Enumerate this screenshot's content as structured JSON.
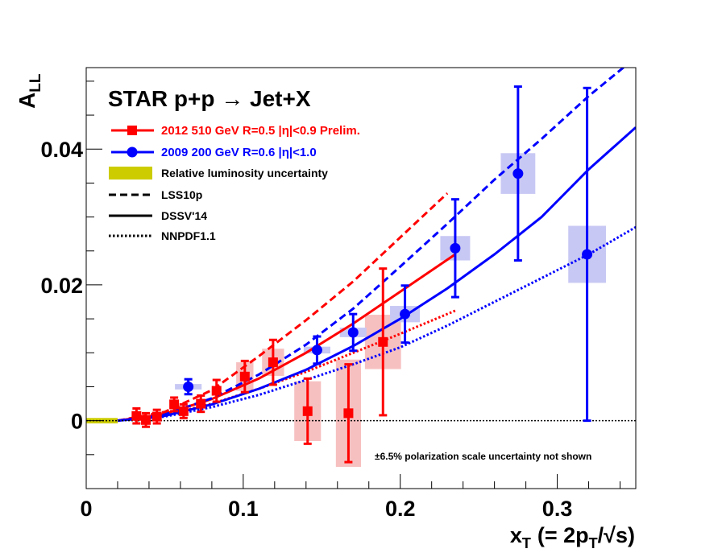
{
  "chart_data": {
    "type": "scatter",
    "title": "STAR p+p → Jet+X",
    "xlabel_main": "x",
    "xlabel_sub": "T",
    "xlabel_rest": "(= 2p",
    "xlabel_rest_sub": "T",
    "xlabel_tail": "/√s)",
    "ylabel_main": "A",
    "ylabel_sub": "LL",
    "xlim": [
      0,
      0.35
    ],
    "ylim": [
      -0.01,
      0.052
    ],
    "x_ticks": [
      0,
      0.1,
      0.2,
      0.3
    ],
    "x_tick_labels": [
      "0",
      "0.1",
      "0.2",
      "0.3"
    ],
    "y_ticks": [
      0,
      0.02,
      0.04
    ],
    "y_tick_labels": [
      "0",
      "0.02",
      "0.04"
    ],
    "grid": false,
    "legend_position": "top-left",
    "annotation": "±6.5% polarization scale uncertainty not shown",
    "colors": {
      "red": "#ff0000",
      "blue": "#0000ff",
      "red_box": "#f7c0c0",
      "blue_box": "#c8c8f4",
      "lumi": "#cccc00"
    },
    "legend": [
      {
        "kind": "red-marker",
        "label": "2012 510 GeV R=0.5  |η|<0.9 Prelim."
      },
      {
        "kind": "blue-marker",
        "label": "2009 200 GeV R=0.6  |η|<1.0"
      },
      {
        "kind": "lumi-band",
        "label": "Relative luminosity uncertainty"
      },
      {
        "kind": "dashed",
        "label": "LSS10p"
      },
      {
        "kind": "solid",
        "label": "DSSV'14"
      },
      {
        "kind": "dotted",
        "label": "NNPDF1.1"
      }
    ],
    "lumi_band": {
      "x": [
        0,
        0.02
      ],
      "y": [
        -0.0004,
        0.0004
      ]
    },
    "series": [
      {
        "name": "2012 510 GeV R=0.5  |η|<0.9 Prelim.",
        "color": "red",
        "points": [
          {
            "x": 0.032,
            "y": 0.0007,
            "err": 0.0011,
            "sys_w": 0.002,
            "sys_h": 0.0004
          },
          {
            "x": 0.038,
            "y": 0.0001,
            "err": 0.001,
            "sys_w": 0.002,
            "sys_h": 0.0004
          },
          {
            "x": 0.045,
            "y": 0.0006,
            "err": 0.001,
            "sys_w": 0.002,
            "sys_h": 0.0004
          },
          {
            "x": 0.056,
            "y": 0.0024,
            "err": 0.001,
            "sys_w": 0.002,
            "sys_h": 0.0006
          },
          {
            "x": 0.062,
            "y": 0.0014,
            "err": 0.001,
            "sys_w": 0.004,
            "sys_h": 0.0006
          },
          {
            "x": 0.073,
            "y": 0.0025,
            "err": 0.0012,
            "sys_w": 0.005,
            "sys_h": 0.0008
          },
          {
            "x": 0.083,
            "y": 0.0044,
            "err": 0.0016,
            "sys_w": 0.006,
            "sys_h": 0.001
          },
          {
            "x": 0.101,
            "y": 0.0065,
            "err": 0.0023,
            "sys_w": 0.011,
            "sys_h": 0.0042
          },
          {
            "x": 0.119,
            "y": 0.0086,
            "err": 0.0033,
            "sys_w": 0.014,
            "sys_h": 0.004
          },
          {
            "x": 0.141,
            "y": 0.0014,
            "err": 0.0048,
            "sys_w": 0.017,
            "sys_h": 0.0088
          },
          {
            "x": 0.167,
            "y": 0.0011,
            "err": 0.0072,
            "sys_w": 0.016,
            "sys_h": 0.0158
          },
          {
            "x": 0.189,
            "y": 0.0116,
            "err": 0.0108,
            "sys_w": 0.023,
            "sys_h": 0.008
          }
        ]
      },
      {
        "name": "2009 200 GeV R=0.6  |η|<1.0",
        "color": "blue",
        "points": [
          {
            "x": 0.065,
            "y": 0.005,
            "err": 0.0011,
            "sys_w": 0.017,
            "sys_h": 0.0008
          },
          {
            "x": 0.147,
            "y": 0.0104,
            "err": 0.002,
            "sys_w": 0.017,
            "sys_h": 0.001
          },
          {
            "x": 0.17,
            "y": 0.013,
            "err": 0.0027,
            "sys_w": 0.017,
            "sys_h": 0.0014
          },
          {
            "x": 0.203,
            "y": 0.0157,
            "err": 0.0042,
            "sys_w": 0.019,
            "sys_h": 0.0024
          },
          {
            "x": 0.235,
            "y": 0.0254,
            "err": 0.0072,
            "sys_w": 0.019,
            "sys_h": 0.0036
          },
          {
            "x": 0.275,
            "y": 0.0364,
            "err": 0.0128,
            "sys_w": 0.022,
            "sys_h": 0.006
          },
          {
            "x": 0.319,
            "y": 0.0245,
            "err": 0.0245,
            "sys_w": 0.024,
            "sys_h": 0.0084
          }
        ]
      }
    ],
    "theory_curves": [
      {
        "model": "LSS10p",
        "color": "red",
        "style": "dashed",
        "x": [
          0.02,
          0.05,
          0.08,
          0.11,
          0.14,
          0.17,
          0.2,
          0.23
        ],
        "y": [
          0.0,
          0.0013,
          0.0045,
          0.0095,
          0.0148,
          0.0205,
          0.027,
          0.0335
        ]
      },
      {
        "model": "DSSV'14",
        "color": "red",
        "style": "solid",
        "x": [
          0.02,
          0.05,
          0.08,
          0.11,
          0.14,
          0.17,
          0.2,
          0.235
        ],
        "y": [
          0.0,
          0.001,
          0.0032,
          0.0062,
          0.01,
          0.0143,
          0.019,
          0.0245
        ]
      },
      {
        "model": "NNPDF1.1",
        "color": "red",
        "style": "dotted",
        "x": [
          0.02,
          0.05,
          0.08,
          0.11,
          0.14,
          0.17,
          0.2,
          0.235
        ],
        "y": [
          0.0,
          0.0008,
          0.0025,
          0.0047,
          0.0072,
          0.01,
          0.0128,
          0.0162
        ]
      },
      {
        "model": "LSS10p",
        "color": "blue",
        "style": "dashed",
        "x": [
          0.02,
          0.05,
          0.08,
          0.11,
          0.14,
          0.17,
          0.2,
          0.23,
          0.26,
          0.29,
          0.32,
          0.35
        ],
        "y": [
          0.0,
          0.0009,
          0.0033,
          0.0068,
          0.0112,
          0.0165,
          0.0227,
          0.029,
          0.0355,
          0.0415,
          0.0478,
          0.0535
        ]
      },
      {
        "model": "DSSV'14",
        "color": "blue",
        "style": "solid",
        "x": [
          0.02,
          0.05,
          0.08,
          0.11,
          0.14,
          0.17,
          0.2,
          0.23,
          0.26,
          0.29,
          0.32,
          0.35
        ],
        "y": [
          0.0,
          0.0007,
          0.0024,
          0.0047,
          0.0075,
          0.011,
          0.015,
          0.0195,
          0.0245,
          0.03,
          0.037,
          0.0432
        ]
      },
      {
        "model": "NNPDF1.1",
        "color": "blue",
        "style": "dotted",
        "x": [
          0.02,
          0.05,
          0.08,
          0.11,
          0.14,
          0.17,
          0.2,
          0.23,
          0.26,
          0.29,
          0.32,
          0.35
        ],
        "y": [
          0.0,
          0.0006,
          0.002,
          0.0038,
          0.006,
          0.0083,
          0.0108,
          0.014,
          0.0175,
          0.021,
          0.0245,
          0.0285
        ]
      }
    ]
  }
}
